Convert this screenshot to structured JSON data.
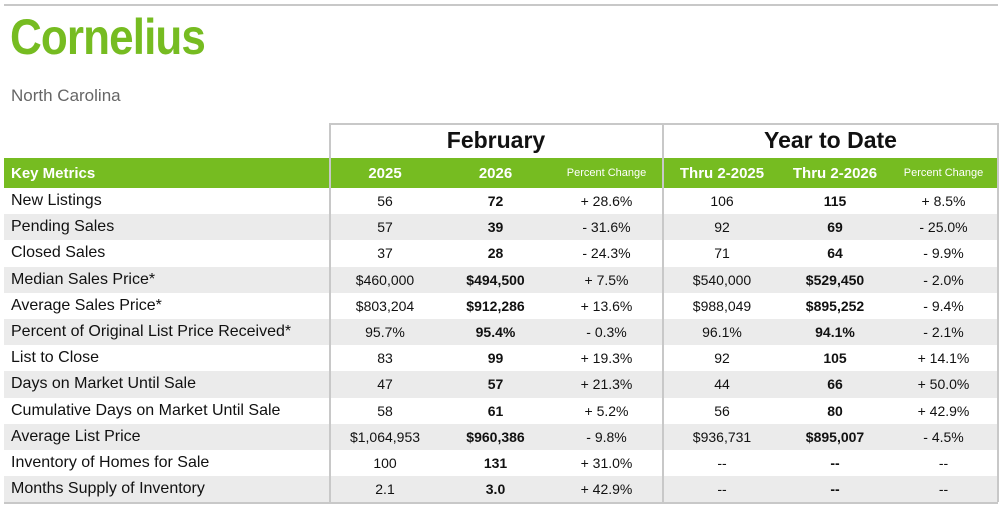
{
  "header": {
    "title": "Cornelius",
    "subtitle": "North Carolina"
  },
  "table": {
    "group_headers": [
      "February",
      "Year to Date"
    ],
    "columns": [
      "Key Metrics",
      "2025",
      "2026",
      "Percent Change",
      "Thru 2-2025",
      "Thru 2-2026",
      "Percent Change"
    ],
    "rows": [
      [
        "New Listings",
        "56",
        "72",
        "+ 28.6%",
        "106",
        "115",
        "+ 8.5%"
      ],
      [
        "Pending Sales",
        "57",
        "39",
        "- 31.6%",
        "92",
        "69",
        "- 25.0%"
      ],
      [
        "Closed Sales",
        "37",
        "28",
        "- 24.3%",
        "71",
        "64",
        "- 9.9%"
      ],
      [
        "Median Sales Price*",
        "$460,000",
        "$494,500",
        "+ 7.5%",
        "$540,000",
        "$529,450",
        "- 2.0%"
      ],
      [
        "Average Sales Price*",
        "$803,204",
        "$912,286",
        "+ 13.6%",
        "$988,049",
        "$895,252",
        "- 9.4%"
      ],
      [
        "Percent of Original List Price Received*",
        "95.7%",
        "95.4%",
        "- 0.3%",
        "96.1%",
        "94.1%",
        "- 2.1%"
      ],
      [
        "List to Close",
        "83",
        "99",
        "+ 19.3%",
        "92",
        "105",
        "+ 14.1%"
      ],
      [
        "Days on Market Until Sale",
        "47",
        "57",
        "+ 21.3%",
        "44",
        "66",
        "+ 50.0%"
      ],
      [
        "Cumulative Days on Market Until Sale",
        "58",
        "61",
        "+ 5.2%",
        "56",
        "80",
        "+ 42.9%"
      ],
      [
        "Average List Price",
        "$1,064,953",
        "$960,386",
        "- 9.8%",
        "$936,731",
        "$895,007",
        "- 4.5%"
      ],
      [
        "Inventory of Homes for Sale",
        "100",
        "131",
        "+ 31.0%",
        "--",
        "--",
        "--"
      ],
      [
        "Months Supply of Inventory",
        "2.1",
        "3.0",
        "+ 42.9%",
        "--",
        "--",
        "--"
      ]
    ]
  }
}
